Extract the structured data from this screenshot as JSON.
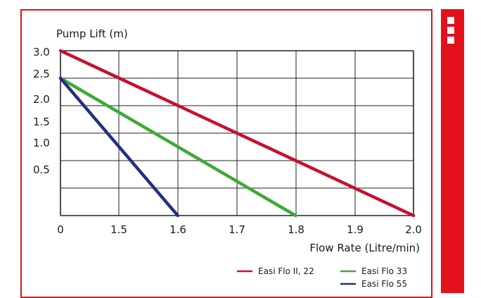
{
  "colors": {
    "accent": "#e3111b",
    "series_red": "#c8102e",
    "series_green": "#3daa35",
    "series_blue": "#24307f"
  },
  "sidebar": {
    "icon": "menu-squares-icon"
  },
  "chart_data": {
    "type": "line",
    "ylabel": "Pump Lift (m)",
    "xlabel": "Flow Rate (Litre/min)",
    "x_ticks": [
      "0",
      "1.5",
      "1.6",
      "1.7",
      "1.8",
      "1.9",
      "2.0"
    ],
    "y_ticks": [
      "3.0",
      "2.5",
      "2.0",
      "1.5",
      "1.0",
      "0.5"
    ],
    "grid": true,
    "legend_position": "bottom-right",
    "series": [
      {
        "name": "Easi Flo II, 22",
        "color": "#c8102e",
        "points": [
          [
            0,
            3.0
          ],
          [
            2.0,
            0
          ]
        ]
      },
      {
        "name": "Easi Flo 33",
        "color": "#3daa35",
        "points": [
          [
            0,
            2.5
          ],
          [
            1.8,
            0
          ]
        ]
      },
      {
        "name": "Easi Flo 55",
        "color": "#24307f",
        "points": [
          [
            0,
            2.5
          ],
          [
            1.6,
            0
          ]
        ]
      }
    ]
  }
}
